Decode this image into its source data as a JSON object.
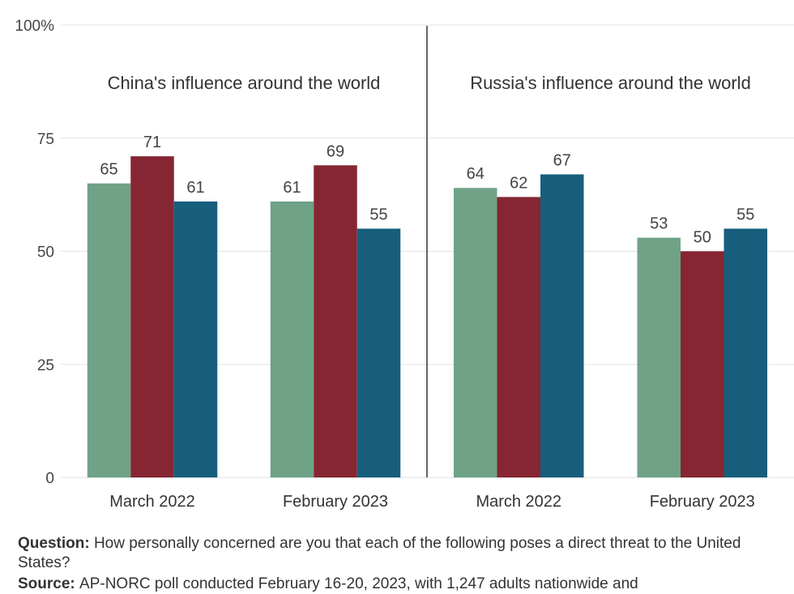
{
  "chart_data": {
    "type": "bar",
    "ylim": [
      0,
      100
    ],
    "y_ticks": [
      "0",
      "25",
      "50",
      "75",
      "100%"
    ],
    "grid": true,
    "panels": [
      {
        "title": "China's influence around the world",
        "categories": [
          "March 2022",
          "February 2023"
        ],
        "series": [
          {
            "values": [
              65,
              61
            ],
            "color": "#6fa287"
          },
          {
            "values": [
              71,
              69
            ],
            "color": "#862633"
          },
          {
            "values": [
              61,
              55
            ],
            "color": "#175e7d"
          }
        ]
      },
      {
        "title": "Russia's influence around the world",
        "categories": [
          "March 2022",
          "February 2023"
        ],
        "series": [
          {
            "values": [
              64,
              53
            ],
            "color": "#6fa287"
          },
          {
            "values": [
              62,
              50
            ],
            "color": "#862633"
          },
          {
            "values": [
              67,
              55
            ],
            "color": "#175e7d"
          }
        ]
      }
    ]
  },
  "footer": {
    "question_label": "Question:",
    "question_text": "How personally concerned are you that each of the following poses a direct threat to the United States?",
    "source_label": "Source:",
    "source_text": "AP-NORC poll conducted February 16-20, 2023, with 1,247 adults nationwide and"
  }
}
